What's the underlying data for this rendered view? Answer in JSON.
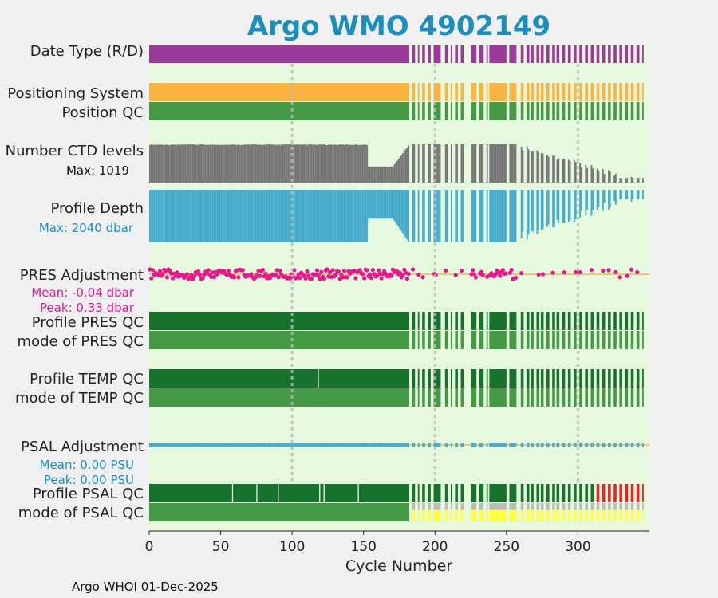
{
  "chart_data": {
    "type": "bar",
    "title": "Argo WMO 4902149",
    "xlabel": "Cycle Number",
    "xlim": [
      0,
      350
    ],
    "xticks": [
      "0",
      "50",
      "100",
      "150",
      "200",
      "250",
      "300"
    ],
    "xtick_values": [
      0,
      50,
      100,
      150,
      200,
      250,
      300
    ],
    "gridlines_x": [
      100,
      200,
      300
    ],
    "cycle_gaps": [
      [
        182,
        183
      ],
      [
        186,
        187
      ],
      [
        189,
        190
      ],
      [
        193,
        194
      ],
      [
        197,
        198
      ],
      [
        204,
        206
      ],
      [
        209,
        210
      ],
      [
        212,
        213
      ],
      [
        216,
        217
      ],
      [
        220,
        224
      ],
      [
        229,
        230
      ],
      [
        234,
        235
      ],
      [
        237,
        237
      ],
      [
        250,
        251
      ],
      [
        257,
        259
      ],
      [
        262,
        263
      ],
      [
        266,
        266
      ],
      [
        269,
        270
      ],
      [
        273,
        273
      ],
      [
        276,
        277
      ],
      [
        280,
        281
      ],
      [
        284,
        284
      ],
      [
        287,
        288
      ],
      [
        291,
        292
      ],
      [
        295,
        296
      ],
      [
        299,
        300
      ],
      [
        303,
        304
      ],
      [
        307,
        308
      ],
      [
        311,
        312
      ],
      [
        315,
        316
      ],
      [
        319,
        320
      ],
      [
        323,
        324
      ],
      [
        327,
        328
      ],
      [
        331,
        332
      ],
      [
        335,
        336
      ],
      [
        339,
        340
      ],
      [
        343,
        344
      ]
    ],
    "rows": [
      {
        "label": "Date Type (R/D)",
        "color": "#9c3a9a"
      },
      {
        "label": "Positioning System",
        "color": "#fbb440"
      },
      {
        "label": "Position QC",
        "color": "#449944"
      },
      {
        "label": "Number CTD levels",
        "color": "#757575",
        "note": "Max: 1019",
        "max": 1019
      },
      {
        "label": "Profile Depth",
        "color": "#44aacc",
        "note": "Max: 2040 dbar",
        "max_dbar": 2040
      },
      {
        "label": "PRES Adjustment",
        "color": "#e8168c",
        "mean": "Mean: -0.04 dbar",
        "peak": "Peak: 0.33 dbar"
      },
      {
        "label": "Profile PRES QC",
        "color": "#17722c"
      },
      {
        "label": "mode of PRES QC",
        "color": "#449944"
      },
      {
        "label": "Profile TEMP QC",
        "color": "#17722c"
      },
      {
        "label": "mode of TEMP QC",
        "color": "#449944"
      },
      {
        "label": "PSAL Adjustment",
        "color": "#44aacc",
        "mean": "Mean: 0.00 PSU",
        "peak": "Peak: 0.00 PSU"
      },
      {
        "label": "Profile PSAL QC",
        "color": "#17722c"
      },
      {
        "label": "mode of PSAL QC",
        "color": "#449944"
      }
    ],
    "psal_flag_colors": {
      "good": "#449944",
      "probably_bad": "#bbbbbb",
      "bad": "#ee2222",
      "probably_good": "#ffff44"
    },
    "psal_mode_change_cycle": 182,
    "psal_bad_start_cycle": 312
  },
  "labels": {
    "title": "Argo WMO 4902149",
    "row_date_type": "Date Type (R/D)",
    "row_positioning": "Positioning System",
    "row_position_qc": "Position QC",
    "row_ctd_levels": "Number CTD levels",
    "ctd_max": "Max: 1019",
    "row_profile_depth": "Profile Depth",
    "depth_max": "Max: 2040 dbar",
    "row_pres_adj": "PRES Adjustment",
    "pres_mean": "Mean: -0.04 dbar",
    "pres_peak": "Peak: 0.33 dbar",
    "row_pres_qc": "Profile PRES QC",
    "row_pres_mode": "mode of PRES QC",
    "row_temp_qc": "Profile TEMP QC",
    "row_temp_mode": "mode of TEMP QC",
    "row_psal_adj": "PSAL Adjustment",
    "psal_mean": "Mean: 0.00 PSU",
    "psal_peak": "Peak: 0.00 PSU",
    "row_psal_qc": "Profile PSAL QC",
    "row_psal_mode": "mode of PSAL QC",
    "xlabel": "Cycle Number",
    "footer": "Argo WHOI 01-Dec-2025"
  },
  "colors": {
    "title": "#1a8fbf",
    "plot_bg": "#e6f8de",
    "grid": "#bbbbbb",
    "adj_line": "#fbb440",
    "pres_note": "#e8168c",
    "psal_note": "#1a8fbf",
    "ctd_note": "#111111"
  }
}
